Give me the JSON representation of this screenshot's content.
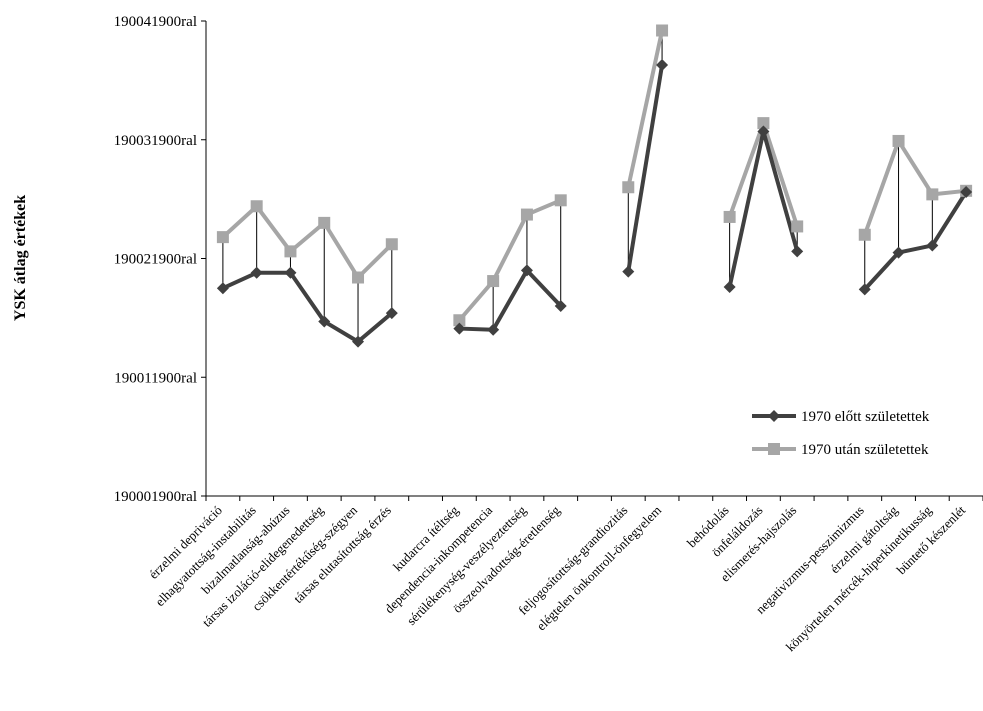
{
  "chart_data": {
    "type": "line",
    "ylabel": "YSK átlag értékek",
    "ylim": [
      190001900,
      190041900
    ],
    "yticks": [
      190001900,
      190011900,
      190021900,
      190031900,
      190041900
    ],
    "ytick_labels": [
      "190001900ral",
      "190011900ral",
      "190021900ral",
      "190031900ral",
      "190041900ral"
    ],
    "categories": [
      "érzelmi depriváció",
      "elhagyatottság-instabilitás",
      "bizalmatlanság-abúzus",
      "társas izoláció-elidegenedettség",
      "csökkentértékűség-szégyen",
      "társas elutasítottság érzés",
      "",
      "kudarcra ítéltség",
      "dependencia-inkompetencia",
      "sérülékenység-veszélyeztettség",
      "összeolvadottság-éretlenség",
      "",
      "feljogosítottság-grandiozitás",
      "elégtelen önkontroll-önfegyelem",
      "",
      "behódolás",
      "önfeláldozás",
      "elismerés-hajszolás",
      "",
      "negativizmus-pesszimizmus",
      "érzelmi gátoltság",
      "könyörtelen mércék-hiperkinetikusság",
      "büntető készenlét"
    ],
    "series": [
      {
        "name": "1970 előtt születettek",
        "color": "#404040",
        "marker": "diamond",
        "values": [
          190019400,
          190020700,
          190020700,
          190016600,
          190014900,
          190017300,
          null,
          190016000,
          190015900,
          190020900,
          190017900,
          null,
          190020800,
          190038200,
          null,
          190019500,
          190032600,
          190022500,
          null,
          190019300,
          190022400,
          190023000,
          190027500
        ]
      },
      {
        "name": "1970 után születettek",
        "color": "#a6a6a6",
        "marker": "square",
        "values": [
          190023700,
          190026300,
          190022500,
          190024900,
          190020300,
          190023100,
          null,
          190016700,
          190020000,
          190025600,
          190026800,
          null,
          190027900,
          190041100,
          null,
          190025400,
          190033300,
          190024600,
          null,
          190023900,
          190031800,
          190027300,
          190027600
        ]
      }
    ],
    "legend_position": "bottom-right"
  }
}
